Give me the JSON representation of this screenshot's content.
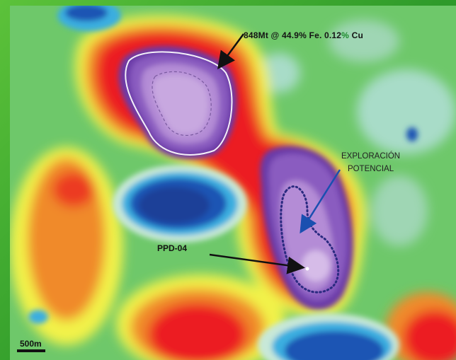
{
  "annotations": {
    "resource_prefix": "848Mt @ 44.9% Fe. 0.12",
    "resource_percent": "%",
    "resource_suffix": " Cu",
    "exploration_line1": "EXPLORACIÓN",
    "exploration_line2": "POTENCIAL",
    "drillhole": "PPD-04"
  },
  "scale_bar": {
    "label": "500m"
  },
  "colors": {
    "frame_green": "#2e9a2a",
    "map_green": "#6ec86a",
    "yellow": "#f2f24a",
    "orange": "#f08a2a",
    "red": "#ec1c24",
    "purple": "#8a5cc0",
    "lilac": "#c8a8e0",
    "blue": "#1e54b4",
    "cyan": "#3aaee0",
    "arrow_black": "#111111",
    "arrow_blue": "#1a4fb0"
  }
}
